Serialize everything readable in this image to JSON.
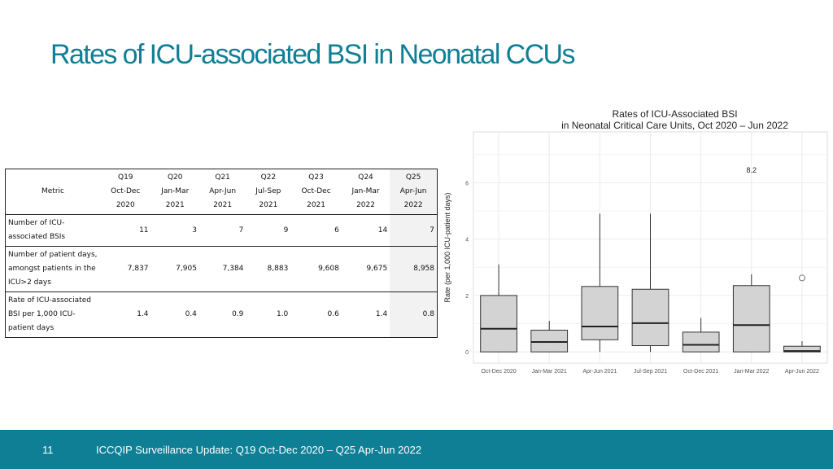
{
  "slide": {
    "title": "Rates of ICU-associated BSI in Neonatal CCUs",
    "page_number": "11",
    "footer": "ICCQIP Surveillance Update: Q19 Oct-Dec 2020 – Q25 Apr-Jun 2022"
  },
  "table": {
    "metric_header": "Metric",
    "columns": [
      {
        "q": "Q19",
        "period": "Oct-Dec",
        "year": "2020"
      },
      {
        "q": "Q20",
        "period": "Jan-Mar",
        "year": "2021"
      },
      {
        "q": "Q21",
        "period": "Apr-Jun",
        "year": "2021"
      },
      {
        "q": "Q22",
        "period": "Jul-Sep",
        "year": "2021"
      },
      {
        "q": "Q23",
        "period": "Oct-Dec",
        "year": "2021"
      },
      {
        "q": "Q24",
        "period": "Jan-Mar",
        "year": "2022"
      },
      {
        "q": "Q25",
        "period": "Apr-Jun",
        "year": "2022"
      }
    ],
    "rows": [
      {
        "label": "Number of ICU-associated BSIs",
        "values": [
          "11",
          "3",
          "7",
          "9",
          "6",
          "14",
          "7"
        ]
      },
      {
        "label": "Number of patient days, amongst patients in the ICU>2 days",
        "values": [
          "7,837",
          "7,905",
          "7,384",
          "8,883",
          "9,608",
          "9,675",
          "8,958"
        ]
      },
      {
        "label": "Rate of ICU-associated BSI per 1,000 ICU-patient days",
        "values": [
          "1.4",
          "0.4",
          "0.9",
          "1.0",
          "0.6",
          "1.4",
          "0.8"
        ]
      }
    ]
  },
  "chart_data": {
    "type": "boxplot",
    "title": "Rates of ICU-Associated BSI",
    "subtitle": "in Neonatal Critical Care Units, Oct 2020 – Jun 2022",
    "xlabel": "",
    "ylabel": "Rate (per 1,000 ICU-patient days)",
    "ylim": [
      -0.4,
      7.8
    ],
    "yticks": [
      0,
      2,
      4,
      6
    ],
    "grid": true,
    "categories": [
      "Oct-Dec 2020",
      "Jan-Mar 2021",
      "Apr-Jun 2021",
      "Jul-Sep 2021",
      "Oct-Dec 2021",
      "Jan-Mar 2022",
      "Apr-Jun 2022"
    ],
    "boxes": [
      {
        "min": 0,
        "q1": 0,
        "median": 0.82,
        "q3": 2.0,
        "max": 3.1,
        "outliers": []
      },
      {
        "min": 0,
        "q1": 0,
        "median": 0.35,
        "q3": 0.77,
        "max": 1.1,
        "outliers": []
      },
      {
        "min": 0,
        "q1": 0.43,
        "median": 0.9,
        "q3": 2.32,
        "max": 4.9,
        "outliers": []
      },
      {
        "min": 0,
        "q1": 0.22,
        "median": 1.02,
        "q3": 2.22,
        "max": 4.9,
        "outliers": []
      },
      {
        "min": 0,
        "q1": 0,
        "median": 0.25,
        "q3": 0.7,
        "max": 1.2,
        "outliers": []
      },
      {
        "min": 0,
        "q1": 0,
        "median": 0.95,
        "q3": 2.35,
        "max": 2.75,
        "outliers": [
          8.2
        ]
      },
      {
        "min": 0,
        "q1": 0,
        "median": 0.03,
        "q3": 0.2,
        "max": 0.38,
        "outliers": [
          2.62
        ]
      }
    ],
    "annotation": "8.2",
    "colors": {
      "box_fill": "#d3d3d3",
      "panel": "#ffffff",
      "grid": "#ebebeb"
    }
  }
}
